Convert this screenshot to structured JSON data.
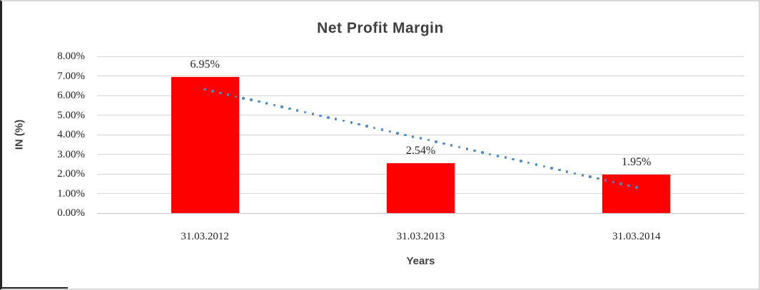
{
  "frame": {
    "background": "#ffffff",
    "border_dark": "#262626",
    "border_light": "#d9d9d9"
  },
  "chart_data": {
    "type": "bar",
    "title": "Net Profit Margin",
    "xlabel": "Years",
    "ylabel": "IN (%)",
    "categories": [
      "31.03.2012",
      "31.03.2013",
      "31.03.2014"
    ],
    "values": [
      6.95,
      2.54,
      1.95
    ],
    "value_labels": [
      "6.95%",
      "2.54%",
      "1.95%"
    ],
    "y_ticks": [
      "8.00%",
      "7.00%",
      "6.00%",
      "5.00%",
      "4.00%",
      "3.00%",
      "2.00%",
      "1.00%",
      "0.00%"
    ],
    "ylim": [
      0,
      8
    ],
    "grid": true,
    "legend": "none",
    "bar_color": "#ff0000",
    "gridline_color": "#d6d6d6",
    "trendline": {
      "style": "dotted",
      "color": "#4e8ac8",
      "start_value": 6.31,
      "end_value": 1.31
    }
  }
}
